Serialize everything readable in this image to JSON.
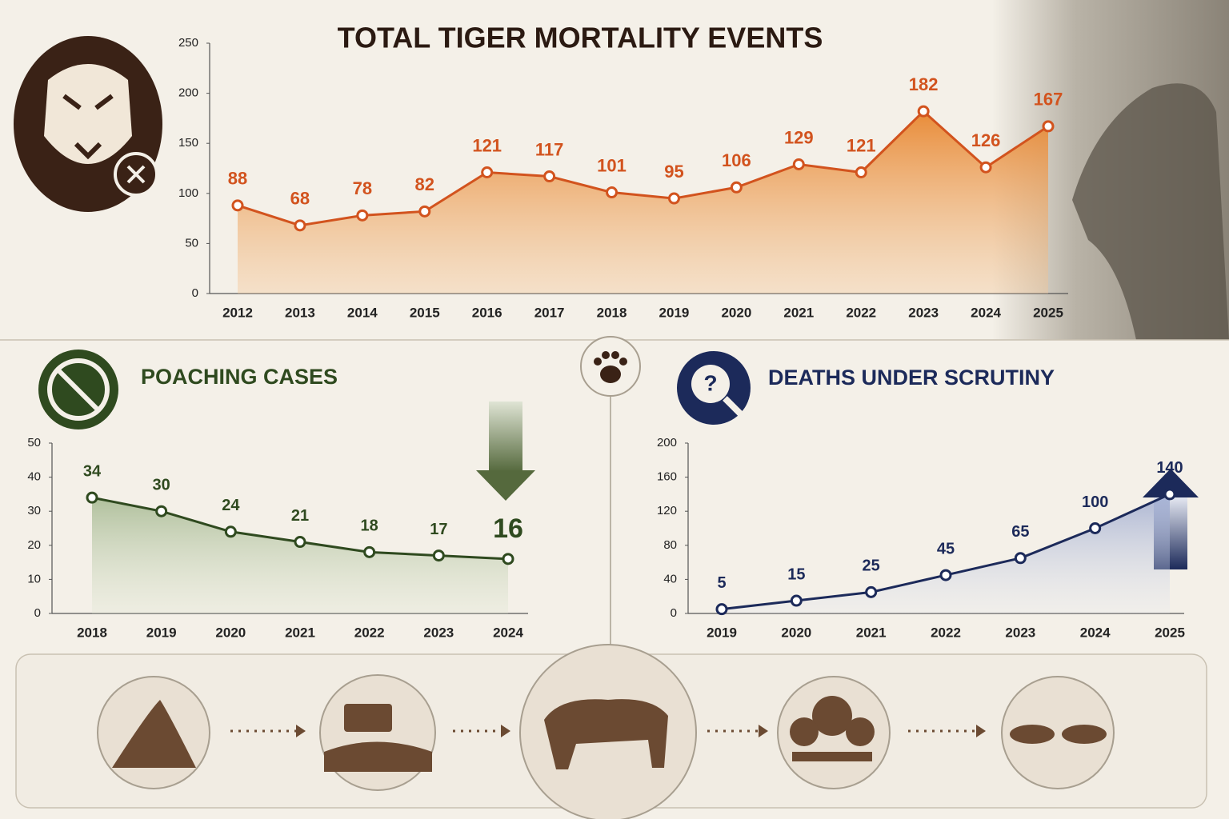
{
  "chart_data": [
    {
      "type": "line",
      "title": "TOTAL TIGER MORTALITY EVENTS",
      "categories": [
        "2012",
        "2013",
        "2014",
        "2015",
        "2016",
        "2017",
        "2018",
        "2019",
        "2020",
        "2021",
        "2022",
        "2023",
        "2024",
        "2025"
      ],
      "values": [
        88,
        68,
        78,
        82,
        121,
        117,
        101,
        95,
        106,
        129,
        121,
        182,
        126,
        167
      ],
      "color": "#d2531e",
      "ylim": [
        0,
        250
      ],
      "yticks": [
        0,
        50,
        100,
        150,
        200,
        250
      ]
    },
    {
      "type": "line",
      "title": "POACHING CASES",
      "categories": [
        "2018",
        "2019",
        "2020",
        "2021",
        "2022",
        "2023",
        "2024"
      ],
      "values": [
        34,
        30,
        24,
        21,
        18,
        17,
        16
      ],
      "color": "#2f4a1f",
      "ylim": [
        0,
        50
      ],
      "yticks": [
        0,
        10,
        20,
        30,
        40,
        50
      ]
    },
    {
      "type": "line",
      "title": "DEATHS UNDER SCRUTINY",
      "categories": [
        "2019",
        "2020",
        "2021",
        "2022",
        "2023",
        "2024",
        "2025"
      ],
      "values": [
        5,
        15,
        25,
        45,
        65,
        100,
        140
      ],
      "color": "#1c2a5a",
      "ylim": [
        0,
        200
      ],
      "yticks": [
        0,
        40,
        80,
        120,
        160,
        200
      ]
    }
  ]
}
